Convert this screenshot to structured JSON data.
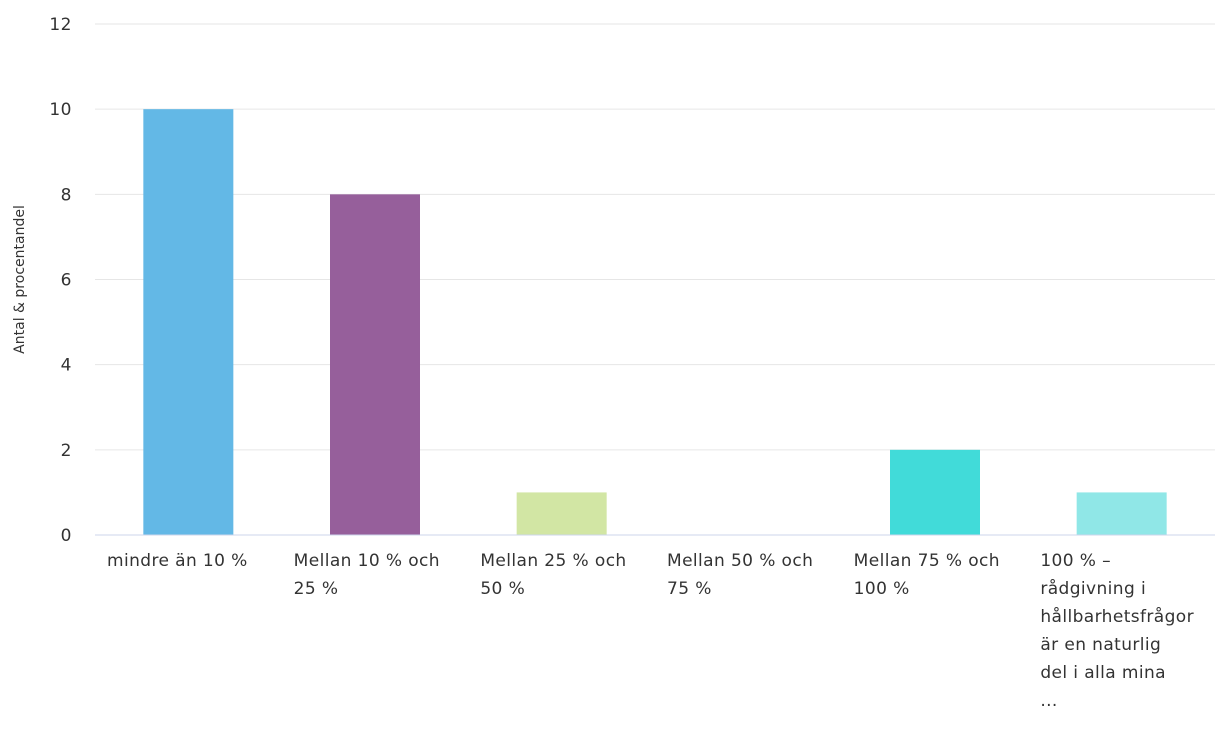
{
  "chart_data": {
    "type": "bar",
    "title": "",
    "xlabel": "",
    "ylabel": "Antal & procentandel",
    "ylim": [
      0,
      12
    ],
    "yticks": [
      0,
      2,
      4,
      6,
      8,
      10,
      12
    ],
    "grid": true,
    "legend": "none",
    "categories": [
      "mindre än 10 %",
      "Mellan 10 % och 25 %",
      "Mellan 25 % och 50 %",
      "Mellan 50 % och 75 %",
      "Mellan 75 % och 100 %",
      "100 % – rådgivning i hållbarhetsfrågor är en naturlig del i alla mina ..."
    ],
    "category_lines": [
      "mindre än 10 %",
      "Mellan 10 % och\n25 %",
      "Mellan 25 % och\n50 %",
      "Mellan 50 % och\n75 %",
      "Mellan 75 % och\n100 %",
      "100 % –\nrådgivning i\nhållbarhetsfrågor\när en naturlig\ndel i alla mina\n..."
    ],
    "values": [
      10,
      8,
      1,
      0,
      2,
      1
    ],
    "colors": [
      "#63b8e6",
      "#965f9b",
      "#d2e6a4",
      "#4ec6c5",
      "#41dbd9",
      "#90e7e7"
    ]
  }
}
